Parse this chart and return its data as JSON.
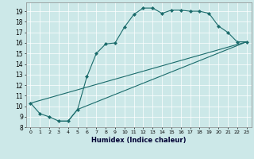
{
  "xlabel": "Humidex (Indice chaleur)",
  "bg_color": "#cce8e8",
  "line_color": "#1a6b6b",
  "xlim": [
    -0.5,
    23.5
  ],
  "ylim": [
    8.0,
    19.8
  ],
  "yticks": [
    8,
    9,
    10,
    11,
    12,
    13,
    14,
    15,
    16,
    17,
    18,
    19
  ],
  "xticks": [
    0,
    1,
    2,
    3,
    4,
    5,
    6,
    7,
    8,
    9,
    10,
    11,
    12,
    13,
    14,
    15,
    16,
    17,
    18,
    19,
    20,
    21,
    22,
    23
  ],
  "xtick_labels": [
    "0",
    "1",
    "2",
    "3",
    "4",
    "5",
    "6",
    "7",
    "8",
    "9",
    "10",
    "11",
    "12",
    "13",
    "14",
    "15",
    "16",
    "17",
    "18",
    "19",
    "20",
    "21",
    "22",
    "23"
  ],
  "line1_x": [
    0,
    1,
    2,
    3,
    4,
    5,
    6,
    7,
    8,
    9,
    10,
    11,
    12,
    13,
    14,
    15,
    16,
    17,
    18,
    19,
    20,
    21,
    22,
    23
  ],
  "line1_y": [
    10.3,
    9.3,
    9.0,
    8.6,
    8.6,
    9.7,
    12.8,
    15.0,
    15.9,
    16.0,
    17.5,
    18.7,
    19.3,
    19.3,
    18.8,
    19.1,
    19.1,
    19.0,
    19.0,
    18.8,
    17.6,
    17.0,
    16.1,
    16.1
  ],
  "line2_x": [
    0,
    23
  ],
  "line2_y": [
    10.3,
    16.1
  ],
  "line3_x": [
    3,
    4,
    5,
    23
  ],
  "line3_y": [
    8.6,
    8.6,
    9.7,
    16.1
  ]
}
